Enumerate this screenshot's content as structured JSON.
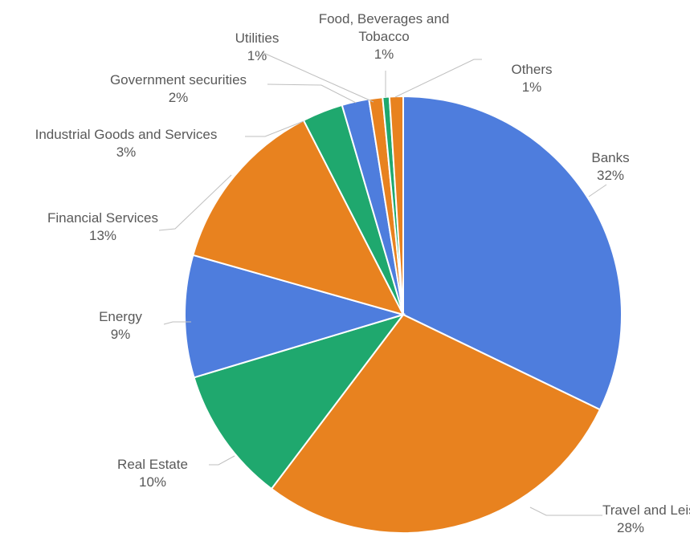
{
  "chart_data": {
    "type": "pie",
    "title": "",
    "legend": "none",
    "start_angle_deg": 0,
    "direction": "clockwise",
    "slices": [
      {
        "label_lines": [
          "Banks"
        ],
        "label": "Banks",
        "value": 32,
        "value_label": "32%",
        "color": "#4e7ddd"
      },
      {
        "label_lines": [
          "Travel and Leisure"
        ],
        "label": "Travel and Leisure",
        "value": 28,
        "value_label": "28%",
        "color": "#e8821f"
      },
      {
        "label_lines": [
          "Real Estate"
        ],
        "label": "Real Estate",
        "value": 10,
        "value_label": "10%",
        "color": "#1fa86e"
      },
      {
        "label_lines": [
          "Energy"
        ],
        "label": "Energy",
        "value": 9,
        "value_label": "9%",
        "color": "#4e7ddd"
      },
      {
        "label_lines": [
          "Financial Services"
        ],
        "label": "Financial Services",
        "value": 13,
        "value_label": "13%",
        "color": "#e8821f"
      },
      {
        "label_lines": [
          "Industrial Goods and Services"
        ],
        "label": "Industrial Goods and Services",
        "value": 3,
        "value_label": "3%",
        "color": "#1fa86e"
      },
      {
        "label_lines": [
          "Government securities"
        ],
        "label": "Government securities",
        "value": 2,
        "value_label": "2%",
        "color": "#4e7ddd"
      },
      {
        "label_lines": [
          "Utilities"
        ],
        "label": "Utilities",
        "value": 1,
        "value_label": "1%",
        "color": "#e8821f"
      },
      {
        "label_lines": [
          "Food, Beverages and",
          "Tobacco"
        ],
        "label": "Food, Beverages and Tobacco",
        "value": 0.5,
        "value_label": "1%",
        "color": "#1fa86e"
      },
      {
        "label_lines": [
          "Others"
        ],
        "label": "Others",
        "value": 1,
        "value_label": "1%",
        "color": "#e8821f"
      }
    ]
  }
}
